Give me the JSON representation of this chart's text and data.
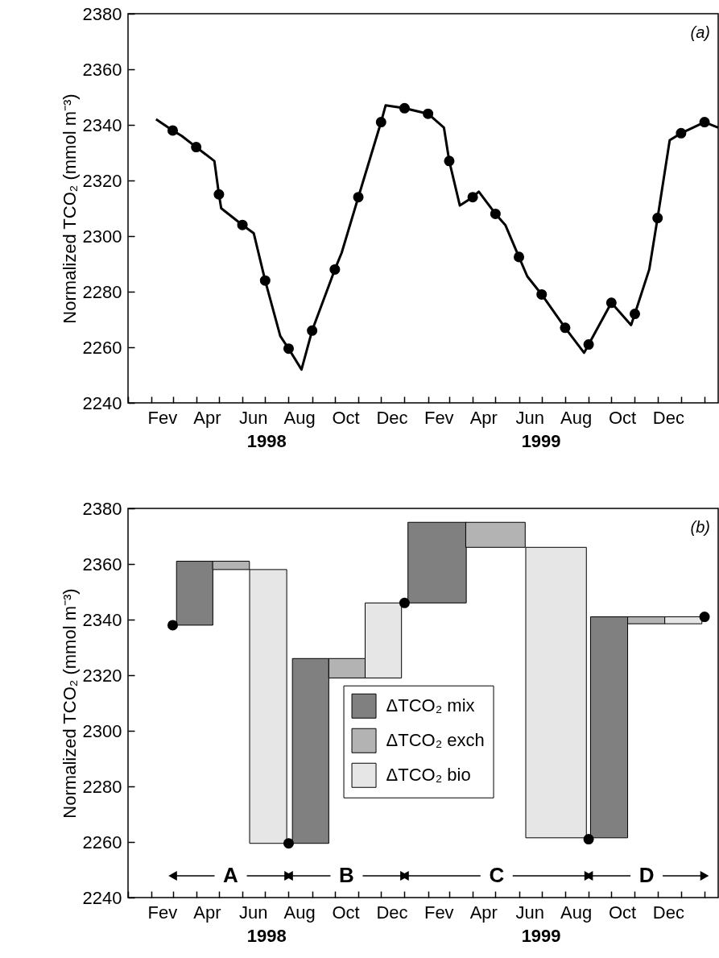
{
  "chart_data": [
    {
      "type": "line",
      "ylabel": "Normalized TCO₂ (mmol m⁻³)",
      "xlim": [
        "1998-01-01",
        "2000-02-19"
      ],
      "ylim": [
        2240,
        2380
      ],
      "yticks": [
        2240,
        2260,
        2280,
        2300,
        2320,
        2340,
        2360,
        2380
      ],
      "xticks": [
        {
          "value": "1998-01-01",
          "label": null
        },
        {
          "value": "1998-02-01",
          "label": null
        },
        {
          "value": "1998-02-15",
          "label": "Fev"
        },
        {
          "value": "1998-03-01",
          "label": null
        },
        {
          "value": "1998-04-01",
          "label": null
        },
        {
          "value": "1998-04-15",
          "label": "Apr"
        },
        {
          "value": "1998-05-01",
          "label": null
        },
        {
          "value": "1998-06-01",
          "label": null
        },
        {
          "value": "1998-06-15",
          "label": "Jun"
        },
        {
          "value": "1998-07-01",
          "label": null
        },
        {
          "value": "1998-08-01",
          "label": null
        },
        {
          "value": "1998-08-15",
          "label": "Aug"
        },
        {
          "value": "1998-09-01",
          "label": null
        },
        {
          "value": "1998-10-01",
          "label": null
        },
        {
          "value": "1998-10-15",
          "label": "Oct"
        },
        {
          "value": "1998-11-01",
          "label": null
        },
        {
          "value": "1998-12-01",
          "label": null
        },
        {
          "value": "1998-12-15",
          "label": "Dec"
        },
        {
          "value": "1999-01-01",
          "label": null
        },
        {
          "value": "1999-02-01",
          "label": null
        },
        {
          "value": "1999-02-15",
          "label": "Fev"
        },
        {
          "value": "1999-03-01",
          "label": null
        },
        {
          "value": "1999-04-01",
          "label": null
        },
        {
          "value": "1999-04-15",
          "label": "Apr"
        },
        {
          "value": "1999-05-01",
          "label": null
        },
        {
          "value": "1999-06-01",
          "label": null
        },
        {
          "value": "1999-06-15",
          "label": "Jun"
        },
        {
          "value": "1999-07-01",
          "label": null
        },
        {
          "value": "1999-08-01",
          "label": null
        },
        {
          "value": "1999-08-15",
          "label": "Aug"
        },
        {
          "value": "1999-09-01",
          "label": null
        },
        {
          "value": "1999-10-01",
          "label": null
        },
        {
          "value": "1999-10-15",
          "label": "Oct"
        },
        {
          "value": "1999-11-01",
          "label": null
        },
        {
          "value": "1999-12-01",
          "label": null
        },
        {
          "value": "1999-12-15",
          "label": "Dec"
        },
        {
          "value": "2000-01-01",
          "label": null
        },
        {
          "value": "2000-02-01",
          "label": null
        }
      ],
      "grid": false,
      "legend": false,
      "annotations": [
        "(a)",
        "1998",
        "1999"
      ],
      "series": [
        {
          "color": "#000000",
          "x": [
            "1998-02-07",
            "1998-03-01",
            "1998-03-13",
            "1998-04-01",
            "1998-04-25",
            "1998-05-01",
            "1998-05-04",
            "1998-06-01",
            "1998-06-16",
            "1998-07-01",
            "1998-07-21",
            "1998-08-01",
            "1998-08-18",
            "1998-09-01",
            "1998-10-01",
            "1998-10-10",
            "1998-11-01",
            "1998-12-01",
            "1998-12-07",
            "1999-01-01",
            "1999-02-01",
            "1999-02-22",
            "1999-03-01",
            "1999-03-15",
            "1999-04-01",
            "1999-04-09",
            "1999-05-01",
            "1999-05-14",
            "1999-06-01",
            "1999-06-12",
            "1999-07-01",
            "1999-08-01",
            "1999-08-26",
            "1999-09-01",
            "1999-10-01",
            "1999-10-27",
            "1999-11-01",
            "1999-11-20",
            "1999-12-01",
            "1999-12-17",
            "2000-01-01",
            "2000-02-01",
            "2000-02-19"
          ],
          "values": [
            2342,
            2338,
            2336,
            2332,
            2327,
            2315,
            2310,
            2304,
            2301,
            2284,
            2264,
            2259.5,
            2252,
            2266,
            2288,
            2294,
            2314,
            2341,
            2347,
            2346,
            2344,
            2339,
            2327,
            2311,
            2314,
            2316,
            2308,
            2304,
            2292.5,
            2285.5,
            2279,
            2267,
            2258,
            2261,
            2276,
            2268,
            2272,
            2288,
            2306.5,
            2334.5,
            2337,
            2341,
            2339
          ]
        },
        {
          "type": "scatter",
          "marker": "circle",
          "color": "#000000",
          "x": [
            "1998-03-01",
            "1998-04-01",
            "1998-05-01",
            "1998-06-01",
            "1998-07-01",
            "1998-08-01",
            "1998-09-01",
            "1998-10-01",
            "1998-11-01",
            "1998-12-01",
            "1999-01-01",
            "1999-02-01",
            "1999-03-01",
            "1999-04-01",
            "1999-05-01",
            "1999-06-01",
            "1999-07-01",
            "1999-08-01",
            "1999-09-01",
            "1999-10-01",
            "1999-11-01",
            "1999-12-01",
            "2000-01-01",
            "2000-02-01"
          ],
          "values": [
            2338,
            2332,
            2315,
            2304,
            2284,
            2259.5,
            2266,
            2288,
            2314,
            2341,
            2346,
            2344,
            2327,
            2314,
            2308,
            2292.5,
            2279,
            2267,
            2261,
            2276,
            2272,
            2306.5,
            2337,
            2341
          ]
        }
      ]
    },
    {
      "type": "bar",
      "ylabel": "Normalized TCO₂ (mmol m⁻³)",
      "xlim": [
        "1998-01-01",
        "2000-02-19"
      ],
      "ylim": [
        2240,
        2380
      ],
      "yticks": [
        2240,
        2260,
        2280,
        2300,
        2320,
        2340,
        2360,
        2380
      ],
      "xticks": [
        {
          "value": "1998-01-01",
          "label": null
        },
        {
          "value": "1998-02-01",
          "label": null
        },
        {
          "value": "1998-02-15",
          "label": "Fev"
        },
        {
          "value": "1998-03-01",
          "label": null
        },
        {
          "value": "1998-04-01",
          "label": null
        },
        {
          "value": "1998-04-15",
          "label": "Apr"
        },
        {
          "value": "1998-05-01",
          "label": null
        },
        {
          "value": "1998-06-01",
          "label": null
        },
        {
          "value": "1998-06-15",
          "label": "Jun"
        },
        {
          "value": "1998-07-01",
          "label": null
        },
        {
          "value": "1998-08-01",
          "label": null
        },
        {
          "value": "1998-08-15",
          "label": "Aug"
        },
        {
          "value": "1998-09-01",
          "label": null
        },
        {
          "value": "1998-10-01",
          "label": null
        },
        {
          "value": "1998-10-15",
          "label": "Oct"
        },
        {
          "value": "1998-11-01",
          "label": null
        },
        {
          "value": "1998-12-01",
          "label": null
        },
        {
          "value": "1998-12-15",
          "label": "Dec"
        },
        {
          "value": "1999-01-01",
          "label": null
        },
        {
          "value": "1999-02-01",
          "label": null
        },
        {
          "value": "1999-02-15",
          "label": "Fev"
        },
        {
          "value": "1999-03-01",
          "label": null
        },
        {
          "value": "1999-04-01",
          "label": null
        },
        {
          "value": "1999-04-15",
          "label": "Apr"
        },
        {
          "value": "1999-05-01",
          "label": null
        },
        {
          "value": "1999-06-01",
          "label": null
        },
        {
          "value": "1999-06-15",
          "label": "Jun"
        },
        {
          "value": "1999-07-01",
          "label": null
        },
        {
          "value": "1999-08-01",
          "label": null
        },
        {
          "value": "1999-08-15",
          "label": "Aug"
        },
        {
          "value": "1999-09-01",
          "label": null
        },
        {
          "value": "1999-10-01",
          "label": null
        },
        {
          "value": "1999-10-15",
          "label": "Oct"
        },
        {
          "value": "1999-11-01",
          "label": null
        },
        {
          "value": "1999-12-01",
          "label": null
        },
        {
          "value": "1999-12-15",
          "label": "Dec"
        },
        {
          "value": "2000-01-01",
          "label": null
        },
        {
          "value": "2000-02-01",
          "label": null
        }
      ],
      "grid": false,
      "legend": "center",
      "annotations": [
        "(b)",
        "1998",
        "1999",
        "A",
        "B",
        "C",
        "D"
      ],
      "series": [
        {
          "name": "ΔTCO₂ mix",
          "color": "#808080",
          "x": [
            "1998-03-30",
            "1998-08-30",
            "1999-02-13",
            "1999-09-28"
          ],
          "base": [
            2338,
            2259.5,
            2346,
            2261.5
          ],
          "values": [
            23,
            66.5,
            29,
            79.5
          ]
        },
        {
          "name": "ΔTCO₂ exch",
          "color": "#b3b3b3",
          "x": [
            "1998-05-17",
            "1998-10-17",
            "1999-05-01",
            "1999-11-16"
          ],
          "base": [
            2361,
            2326,
            2375,
            2341
          ],
          "values": [
            -3,
            -7,
            -9,
            -2.5
          ]
        },
        {
          "name": "ΔTCO₂ bio",
          "color": "#e6e6e6",
          "x": [
            "1998-07-05",
            "1998-12-04",
            "1999-07-20",
            "2000-01-04"
          ],
          "base": [
            2358,
            2319,
            2366,
            2338.5
          ],
          "values": [
            -98.5,
            27,
            -104.5,
            2.5
          ]
        },
        {
          "type": "scatter",
          "marker": "circle",
          "color": "#000000",
          "x": [
            "1998-03-01",
            "1998-08-01",
            "1999-01-01",
            "1999-09-01",
            "2000-02-01"
          ],
          "values": [
            2338,
            2259.5,
            2346,
            2261,
            2341
          ]
        }
      ]
    }
  ]
}
